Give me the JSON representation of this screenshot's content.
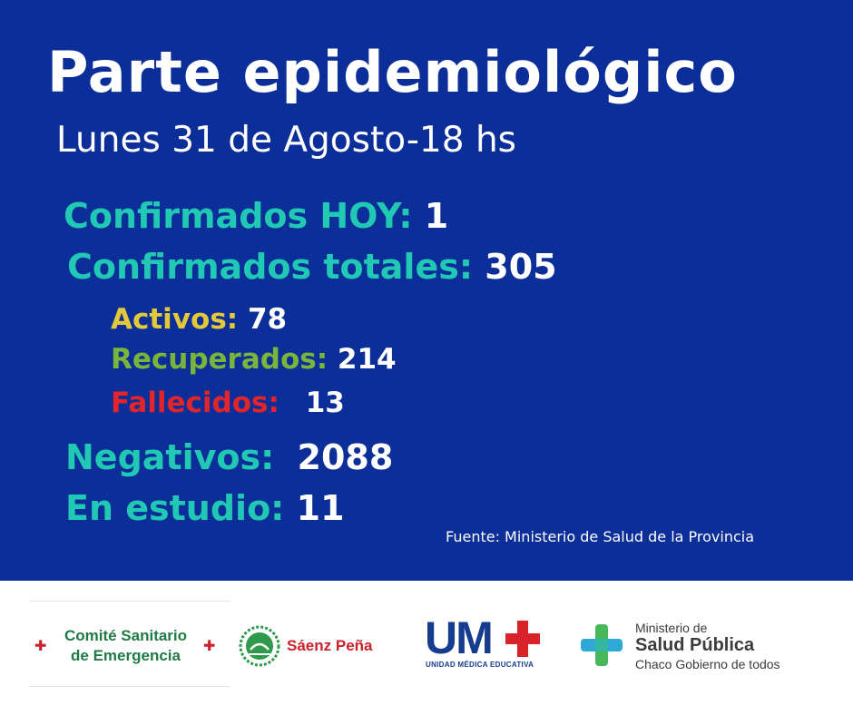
{
  "header": {
    "title": "Parte epidemiológico",
    "subtitle": "Lunes 31 de Agosto-18 hs"
  },
  "stats": {
    "confirmados_hoy": {
      "label": "Confirmados HOY:",
      "value": "1"
    },
    "confirmados_totales": {
      "label": "Confirmados totales:",
      "value": "305"
    },
    "activos": {
      "label": "Activos:",
      "value": "78"
    },
    "recuperados": {
      "label": "Recuperados:",
      "value": "214"
    },
    "fallecidos": {
      "label": "Fallecidos:",
      "value": "13"
    },
    "negativos": {
      "label": "Negativos:",
      "value": "2088"
    },
    "en_estudio": {
      "label": "En estudio:",
      "value": "11"
    }
  },
  "source": "Fuente: Ministerio de Salud de la Provincia",
  "footer": {
    "comite": {
      "line1": "Comité Sanitario",
      "line2": "de Emergencia"
    },
    "saenz": {
      "name": "Sáenz Peña"
    },
    "ume": {
      "name": "UM",
      "subtitle": "UNIDAD MÉDICA EDUCATIVA"
    },
    "ministerio": {
      "line1": "Ministerio de",
      "line2": "Salud Pública",
      "line3": "Chaco Gobierno de todos"
    }
  },
  "colors": {
    "background": "#0b2e99",
    "label_teal": "#21c9b4",
    "activos": "#e3c93a",
    "recuperados": "#79b43b",
    "fallecidos": "#e1252b"
  }
}
